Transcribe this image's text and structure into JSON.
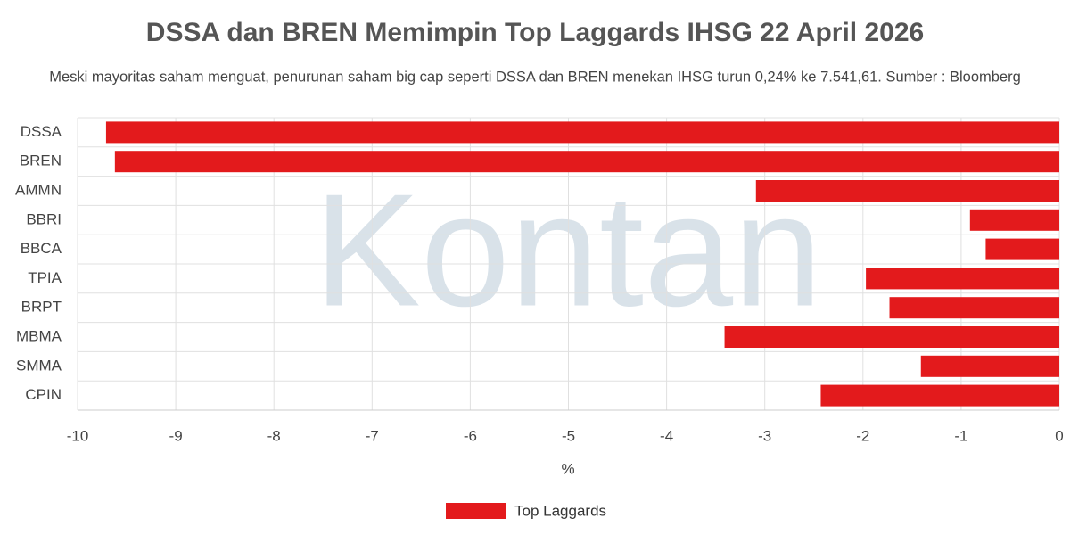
{
  "chart_data": {
    "type": "bar",
    "orientation": "horizontal",
    "title": "DSSA dan BREN Memimpin Top Laggards IHSG 22 April 2026",
    "subtitle": "Meski mayoritas saham menguat, penurunan saham big cap seperti DSSA dan BREN menekan IHSG turun 0,24% ke 7.541,61. Sumber : Bloomberg",
    "watermark": "Kontan",
    "categories": [
      "DSSA",
      "BREN",
      "AMMN",
      "BBRI",
      "BBCA",
      "TPIA",
      "BRPT",
      "MBMA",
      "SMMA",
      "CPIN"
    ],
    "series": [
      {
        "name": "Top Laggards",
        "color": "#e31a1c",
        "values": [
          -9.71,
          -9.62,
          -3.09,
          -0.91,
          -0.75,
          -1.97,
          -1.73,
          -3.41,
          -1.41,
          -2.43
        ]
      }
    ],
    "x_label": "%",
    "xlim": [
      -10,
      0
    ],
    "xticks": [
      -10,
      -9,
      -8,
      -7,
      -6,
      -5,
      -4,
      -3,
      -2,
      -1,
      0
    ],
    "grid": true,
    "legend": "bottom"
  }
}
